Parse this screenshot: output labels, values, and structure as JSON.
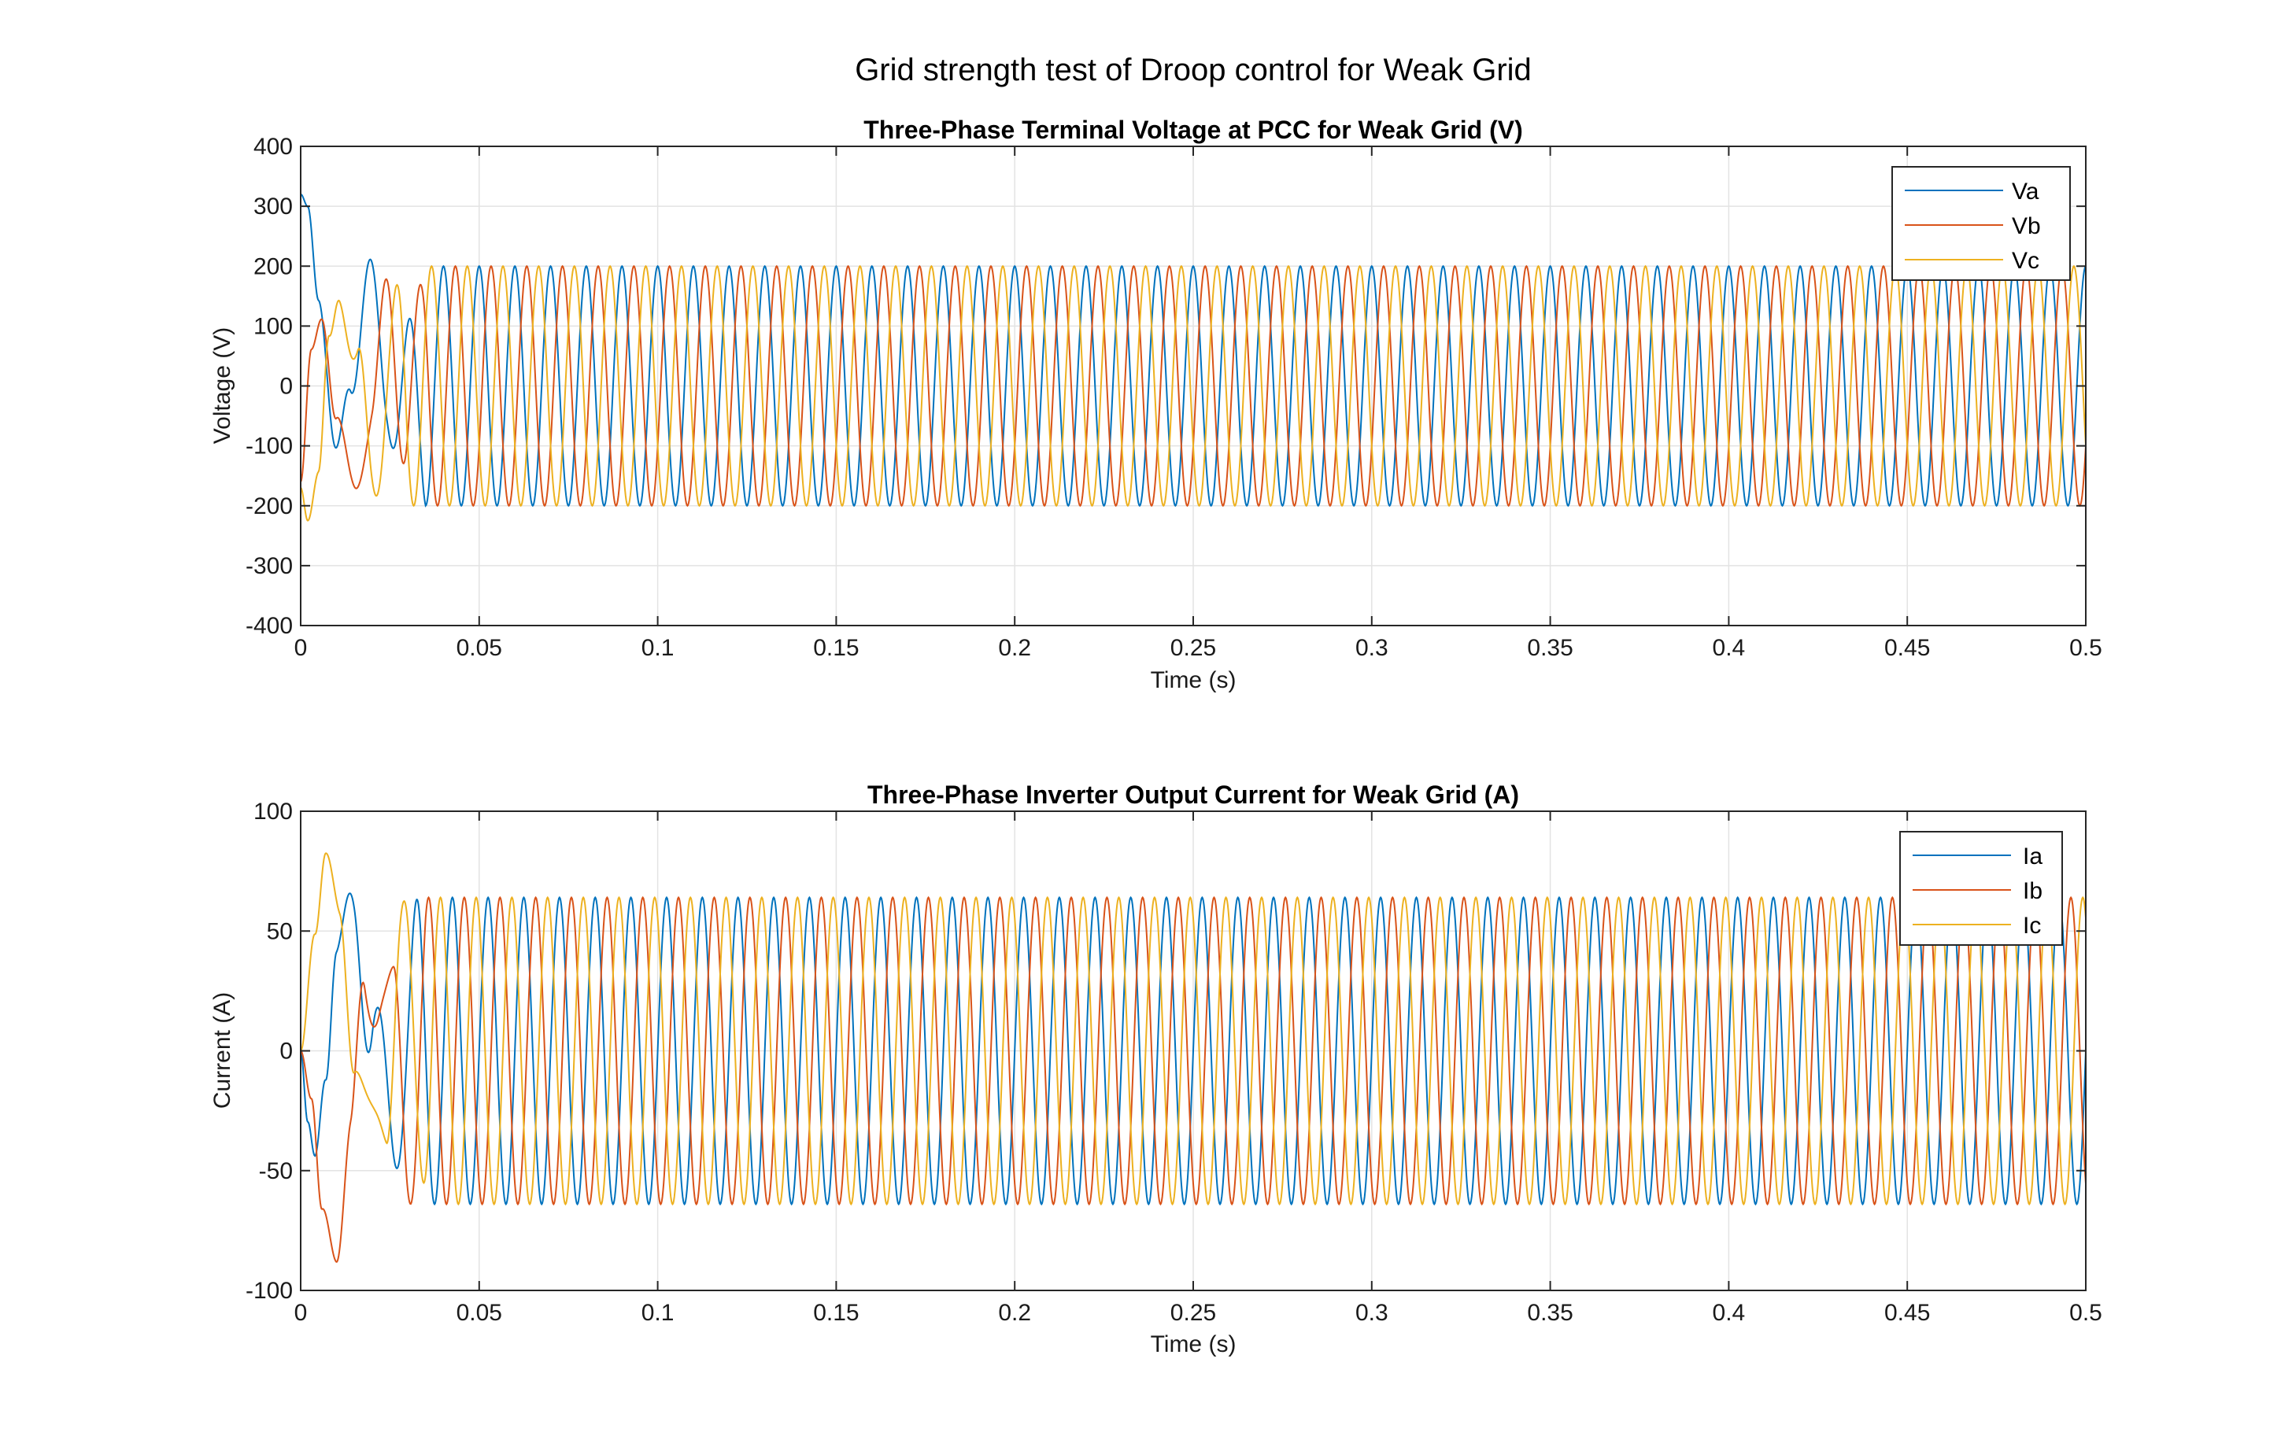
{
  "figure": {
    "title": "Grid strength test of Droop control for Weak Grid"
  },
  "colors": {
    "phase_a": "#0072BD",
    "phase_b": "#D95319",
    "phase_c": "#EDB120",
    "grid": "#e3e3e3",
    "axes": "#262626"
  },
  "chart_data": [
    {
      "type": "line",
      "title": "Three-Phase Terminal Voltage at PCC for Weak Grid (V)",
      "xlabel": "Time (s)",
      "ylabel": "Voltage (V)",
      "xlim": [
        0,
        0.5
      ],
      "ylim": [
        -400,
        400
      ],
      "xticks": [
        0,
        0.05,
        0.1,
        0.15,
        0.2,
        0.25,
        0.3,
        0.35,
        0.4,
        0.45,
        0.5
      ],
      "xtick_labels": [
        "0",
        "0.05",
        "0.1",
        "0.15",
        "0.2",
        "0.25",
        "0.3",
        "0.35",
        "0.4",
        "0.45",
        "0.5"
      ],
      "yticks": [
        -400,
        -300,
        -200,
        -100,
        0,
        100,
        200,
        300,
        400
      ],
      "ytick_labels": [
        "-400",
        "-300",
        "-200",
        "-100",
        "0",
        "100",
        "200",
        "300",
        "400"
      ],
      "grid": true,
      "legend_position": "top-right",
      "frequency_hz": 100,
      "series": [
        {
          "name": "Va",
          "color": "#0072BD",
          "steady_amplitude": 200,
          "phase_deg": 90,
          "transient_points": [
            [
              0,
              320
            ],
            [
              0.002,
              300
            ],
            [
              0.005,
              150
            ],
            [
              0.01,
              -130
            ],
            [
              0.014,
              20
            ],
            [
              0.019,
              225
            ],
            [
              0.024,
              50
            ],
            [
              0.029,
              -190
            ],
            [
              0.035,
              200
            ]
          ]
        },
        {
          "name": "Vb",
          "color": "#D95319",
          "steady_amplitude": 200,
          "phase_deg": -30,
          "transient_points": [
            [
              0,
              -160
            ],
            [
              0.003,
              60
            ],
            [
              0.006,
              115
            ],
            [
              0.01,
              -50
            ],
            [
              0.015,
              -228
            ],
            [
              0.02,
              -20
            ],
            [
              0.025,
              195
            ],
            [
              0.03,
              -30
            ],
            [
              0.035,
              -190
            ]
          ]
        },
        {
          "name": "Vc",
          "color": "#EDB120",
          "steady_amplitude": 200,
          "phase_deg": 210,
          "transient_points": [
            [
              0,
              -170
            ],
            [
              0.002,
              -225
            ],
            [
              0.005,
              -150
            ],
            [
              0.008,
              80
            ],
            [
              0.011,
              190
            ],
            [
              0.016,
              10
            ],
            [
              0.02,
              -200
            ],
            [
              0.025,
              -20
            ],
            [
              0.03,
              195
            ]
          ]
        }
      ]
    },
    {
      "type": "line",
      "title": "Three-Phase Inverter Output Current for Weak Grid (A)",
      "xlabel": "Time (s)",
      "ylabel": "Current (A)",
      "xlim": [
        0,
        0.5
      ],
      "ylim": [
        -100,
        100
      ],
      "xticks": [
        0,
        0.05,
        0.1,
        0.15,
        0.2,
        0.25,
        0.3,
        0.35,
        0.4,
        0.45,
        0.5
      ],
      "xtick_labels": [
        "0",
        "0.05",
        "0.1",
        "0.15",
        "0.2",
        "0.25",
        "0.3",
        "0.35",
        "0.4",
        "0.45",
        "0.5"
      ],
      "yticks": [
        -100,
        -50,
        0,
        50,
        100
      ],
      "ytick_labels": [
        "-100",
        "-50",
        "0",
        "50",
        "100"
      ],
      "grid": true,
      "legend_position": "top-right",
      "frequency_hz": 100,
      "series": [
        {
          "name": "Ia",
          "color": "#0072BD",
          "steady_amplitude": 64,
          "phase_deg": 0,
          "transient_points": [
            [
              0,
              0
            ],
            [
              0.002,
              -30
            ],
            [
              0.004,
              -45
            ],
            [
              0.007,
              -10
            ],
            [
              0.01,
              45
            ],
            [
              0.015,
              74
            ],
            [
              0.02,
              10
            ],
            [
              0.025,
              -60
            ],
            [
              0.03,
              30
            ],
            [
              0.034,
              65
            ]
          ]
        },
        {
          "name": "Ib",
          "color": "#D95319",
          "steady_amplitude": 64,
          "phase_deg": -120,
          "transient_points": [
            [
              0,
              0
            ],
            [
              0.003,
              -20
            ],
            [
              0.006,
              -70
            ],
            [
              0.01,
              -91
            ],
            [
              0.014,
              -40
            ],
            [
              0.018,
              30
            ],
            [
              0.022,
              56
            ],
            [
              0.026,
              0
            ],
            [
              0.03,
              -66
            ],
            [
              0.035,
              -30
            ]
          ]
        },
        {
          "name": "Ic",
          "color": "#EDB120",
          "steady_amplitude": 64,
          "phase_deg": 120,
          "transient_points": [
            [
              0,
              0
            ],
            [
              0.004,
              50
            ],
            [
              0.007,
              85
            ],
            [
              0.011,
              60
            ],
            [
              0.015,
              0
            ],
            [
              0.02,
              -55
            ],
            [
              0.024,
              -20
            ],
            [
              0.028,
              65
            ],
            [
              0.033,
              20
            ],
            [
              0.037,
              -62
            ]
          ]
        }
      ]
    }
  ]
}
